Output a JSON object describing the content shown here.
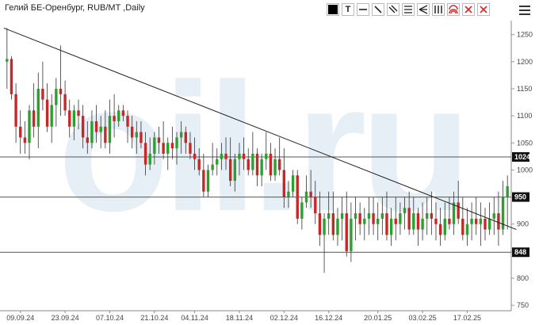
{
  "header": {
    "title": "Гелий БЕ-Оренбург, RUB/MT ,Daily"
  },
  "toolbar": [
    {
      "name": "color-fill-tool",
      "icon": "black-square-icon",
      "label": ""
    },
    {
      "name": "text-tool",
      "icon": "text-icon",
      "label": "T"
    },
    {
      "name": "horizontal-line-tool",
      "icon": "horizontal-line-icon",
      "label": ""
    },
    {
      "name": "trend-line-tool",
      "icon": "diagonal-line-icon",
      "label": ""
    },
    {
      "name": "channel-tool",
      "icon": "parallel-lines-icon",
      "label": ""
    },
    {
      "name": "fib-levels-tool",
      "icon": "stacked-lines-icon",
      "label": ""
    },
    {
      "name": "fan-tool",
      "icon": "fan-icon",
      "label": ""
    },
    {
      "name": "vertical-lines-tool",
      "icon": "vertical-lines-icon",
      "label": ""
    },
    {
      "name": "arc-tool",
      "icon": "red-arcs-icon",
      "label": ""
    },
    {
      "name": "delete-tool",
      "icon": "red-x-icon",
      "label": ""
    },
    {
      "name": "delete-all-tool",
      "icon": "red-x-icon",
      "label": ""
    }
  ],
  "menu_icon": "hamburger-menu-icon",
  "watermark": "oil.ru",
  "colors": {
    "up": "#2ca02c",
    "down": "#c62828",
    "wick": "#333333",
    "level_bg": "#111111",
    "watermark": "#e6eef6"
  },
  "chart_data": {
    "type": "candlestick",
    "title": "Гелий БЕ-Оренбург, RUB/MT ,Daily",
    "ylim": [
      740,
      1270
    ],
    "y_ticks": [
      750,
      800,
      850,
      900,
      950,
      1000,
      1050,
      1100,
      1150,
      1200,
      1250
    ],
    "x_ticks": [
      "09.09.24",
      "23.09.24",
      "07.10.24",
      "21.10.24",
      "04.11.24",
      "18.11.24",
      "02.12.24",
      "16.12.24",
      "20.01.25",
      "03.02.25",
      "17.02.25"
    ],
    "levels": [
      {
        "value": 1024,
        "label": "1024"
      },
      {
        "value": 950,
        "label": "950"
      },
      {
        "value": 848,
        "label": "848"
      }
    ],
    "trendline": {
      "start": [
        0,
        1262
      ],
      "end": [
        114,
        890
      ]
    },
    "candles": [
      [
        1200,
        1262,
        1150,
        1205
      ],
      [
        1205,
        1210,
        1130,
        1140
      ],
      [
        1140,
        1160,
        1050,
        1080
      ],
      [
        1080,
        1110,
        1030,
        1060
      ],
      [
        1060,
        1090,
        1030,
        1050
      ],
      [
        1050,
        1120,
        1020,
        1110
      ],
      [
        1110,
        1160,
        1060,
        1080
      ],
      [
        1080,
        1180,
        1040,
        1150
      ],
      [
        1150,
        1200,
        1110,
        1130
      ],
      [
        1130,
        1160,
        1070,
        1080
      ],
      [
        1080,
        1140,
        1050,
        1120
      ],
      [
        1120,
        1170,
        1080,
        1150
      ],
      [
        1150,
        1230,
        1100,
        1140
      ],
      [
        1140,
        1165,
        1100,
        1110
      ],
      [
        1110,
        1130,
        1060,
        1080
      ],
      [
        1080,
        1120,
        1055,
        1110
      ],
      [
        1110,
        1130,
        1075,
        1100
      ],
      [
        1100,
        1120,
        1040,
        1060
      ],
      [
        1060,
        1090,
        1030,
        1050
      ],
      [
        1050,
        1110,
        1040,
        1090
      ],
      [
        1090,
        1120,
        1050,
        1070
      ],
      [
        1070,
        1100,
        1040,
        1080
      ],
      [
        1080,
        1110,
        1040,
        1050
      ],
      [
        1050,
        1130,
        1030,
        1100
      ],
      [
        1100,
        1140,
        1060,
        1090
      ],
      [
        1090,
        1120,
        1080,
        1110
      ],
      [
        1110,
        1120,
        1090,
        1100
      ],
      [
        1100,
        1110,
        1050,
        1080
      ],
      [
        1080,
        1100,
        1040,
        1060
      ],
      [
        1060,
        1090,
        1030,
        1070
      ],
      [
        1070,
        1090,
        1040,
        1050
      ],
      [
        1050,
        1070,
        990,
        1010
      ],
      [
        1010,
        1060,
        1000,
        1030
      ],
      [
        1030,
        1070,
        1010,
        1060
      ],
      [
        1060,
        1080,
        1030,
        1050
      ],
      [
        1050,
        1090,
        1020,
        1030
      ],
      [
        1030,
        1060,
        1000,
        1050
      ],
      [
        1050,
        1080,
        1020,
        1040
      ],
      [
        1040,
        1070,
        1010,
        1060
      ],
      [
        1060,
        1090,
        1030,
        1070
      ],
      [
        1070,
        1080,
        1030,
        1050
      ],
      [
        1050,
        1070,
        1020,
        1030
      ],
      [
        1030,
        1060,
        1000,
        1020
      ],
      [
        1020,
        1040,
        990,
        1000
      ],
      [
        1000,
        1030,
        950,
        960
      ],
      [
        960,
        1010,
        950,
        1000
      ],
      [
        1000,
        1050,
        990,
        1010
      ],
      [
        1010,
        1040,
        990,
        1020
      ],
      [
        1020,
        1050,
        1000,
        1030
      ],
      [
        1030,
        1060,
        1000,
        1020
      ],
      [
        1020,
        1060,
        970,
        980
      ],
      [
        980,
        1030,
        960,
        1020
      ],
      [
        1020,
        1050,
        990,
        1030
      ],
      [
        1030,
        1060,
        1000,
        1020
      ],
      [
        1020,
        1040,
        990,
        1000
      ],
      [
        1000,
        1070,
        990,
        1030
      ],
      [
        1030,
        1040,
        970,
        990
      ],
      [
        990,
        1030,
        970,
        1020
      ],
      [
        1020,
        1070,
        1000,
        1030
      ],
      [
        1030,
        1050,
        980,
        990
      ],
      [
        990,
        1040,
        980,
        1020
      ],
      [
        1020,
        1060,
        990,
        1000
      ],
      [
        1000,
        1040,
        930,
        950
      ],
      [
        950,
        980,
        930,
        960
      ],
      [
        960,
        1000,
        950,
        990
      ],
      [
        990,
        1000,
        900,
        910
      ],
      [
        910,
        950,
        890,
        940
      ],
      [
        940,
        990,
        930,
        960
      ],
      [
        960,
        1000,
        930,
        950
      ],
      [
        950,
        980,
        900,
        920
      ],
      [
        920,
        960,
        860,
        880
      ],
      [
        880,
        920,
        810,
        910
      ],
      [
        910,
        960,
        880,
        920
      ],
      [
        920,
        960,
        870,
        880
      ],
      [
        880,
        930,
        860,
        910
      ],
      [
        910,
        950,
        870,
        920
      ],
      [
        920,
        960,
        840,
        850
      ],
      [
        850,
        940,
        830,
        910
      ],
      [
        910,
        950,
        870,
        920
      ],
      [
        920,
        940,
        880,
        900
      ],
      [
        900,
        930,
        870,
        910
      ],
      [
        910,
        950,
        880,
        920
      ],
      [
        920,
        950,
        880,
        900
      ],
      [
        900,
        940,
        870,
        910
      ],
      [
        910,
        950,
        880,
        920
      ],
      [
        920,
        960,
        870,
        880
      ],
      [
        880,
        930,
        860,
        910
      ],
      [
        910,
        950,
        870,
        900
      ],
      [
        900,
        940,
        880,
        920
      ],
      [
        920,
        950,
        890,
        930
      ],
      [
        930,
        960,
        880,
        890
      ],
      [
        890,
        950,
        880,
        920
      ],
      [
        920,
        930,
        860,
        890
      ],
      [
        890,
        940,
        870,
        910
      ],
      [
        910,
        950,
        880,
        920
      ],
      [
        920,
        960,
        880,
        910
      ],
      [
        910,
        940,
        870,
        900
      ],
      [
        900,
        930,
        860,
        880
      ],
      [
        880,
        940,
        870,
        910
      ],
      [
        910,
        950,
        890,
        900
      ],
      [
        900,
        960,
        880,
        940
      ],
      [
        940,
        980,
        900,
        910
      ],
      [
        910,
        950,
        870,
        880
      ],
      [
        880,
        930,
        860,
        900
      ],
      [
        900,
        940,
        870,
        910
      ],
      [
        910,
        950,
        880,
        900
      ],
      [
        900,
        940,
        860,
        910
      ],
      [
        910,
        930,
        870,
        890
      ],
      [
        890,
        940,
        880,
        910
      ],
      [
        910,
        950,
        880,
        920
      ],
      [
        920,
        960,
        860,
        890
      ],
      [
        890,
        980,
        880,
        950
      ],
      [
        950,
        990,
        890,
        970
      ]
    ]
  }
}
